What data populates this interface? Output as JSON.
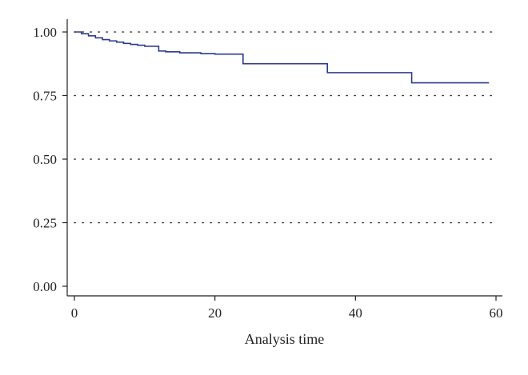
{
  "chart_data": {
    "type": "line",
    "title": "",
    "xlabel": "Analysis time",
    "ylabel": "",
    "xlim": [
      0,
      60
    ],
    "ylim": [
      0,
      1
    ],
    "x_ticks": [
      0,
      20,
      40,
      60
    ],
    "x_tick_labels": [
      "0",
      "20",
      "40",
      "60"
    ],
    "y_ticks": [
      0,
      0.25,
      0.5,
      0.75,
      1
    ],
    "y_tick_labels": [
      "0.00",
      "0.25",
      "0.50",
      "0.75",
      "1.00"
    ],
    "grid": "horizontal dotted lines at y ticks 0.25–1.00",
    "legend": "none",
    "step": "post",
    "line_color": "#2d3a8c",
    "series": [
      {
        "x": [
          0,
          1,
          2,
          3,
          4,
          5,
          6,
          7,
          8,
          9,
          10,
          12,
          13,
          15,
          18,
          20,
          24,
          36,
          48,
          59
        ],
        "values": [
          1.0,
          0.993,
          0.985,
          0.977,
          0.97,
          0.965,
          0.96,
          0.955,
          0.951,
          0.948,
          0.944,
          0.925,
          0.922,
          0.918,
          0.915,
          0.913,
          0.875,
          0.84,
          0.8,
          0.8
        ]
      }
    ]
  }
}
